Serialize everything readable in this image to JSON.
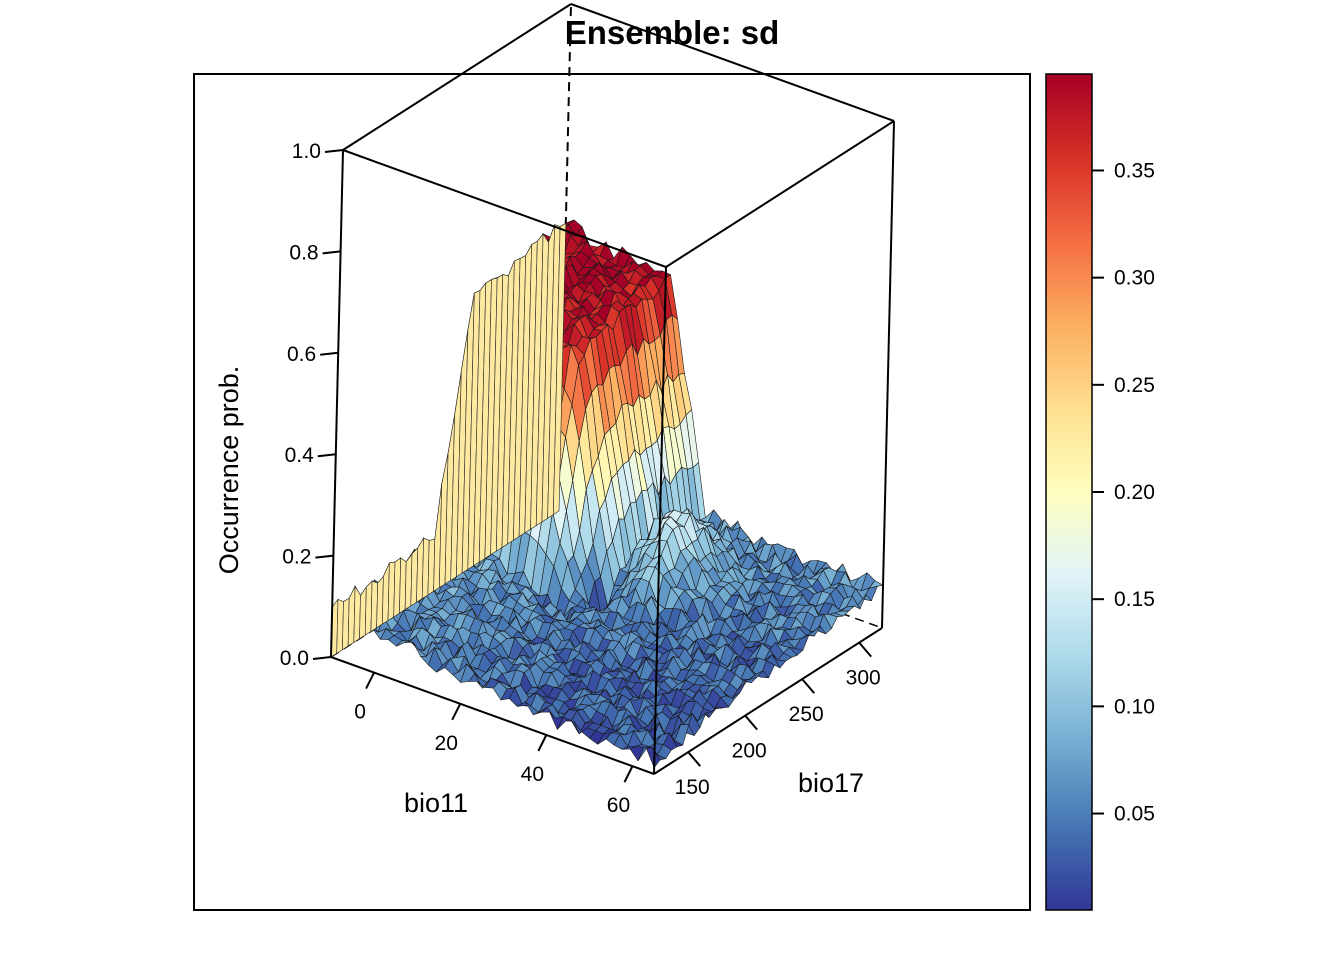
{
  "chart_data": {
    "type": "surface-3d",
    "title": "Ensemble: sd",
    "zlabel": "Occurrence prob.",
    "xlabel": "bio11",
    "ylabel": "bio17",
    "zlim": [
      0.0,
      1.0
    ],
    "z_ticks": [
      "0.0",
      "0.2",
      "0.4",
      "0.6",
      "0.8",
      "1.0"
    ],
    "x_ticks": [
      "0",
      "20",
      "40",
      "60"
    ],
    "y_ticks": [
      "150",
      "200",
      "250",
      "300"
    ],
    "grid": false,
    "colorbar": {
      "range": [
        0.005,
        0.395
      ],
      "ticks": [
        "0.05",
        "0.10",
        "0.15",
        "0.20",
        "0.25",
        "0.30",
        "0.35"
      ],
      "palette": [
        "#313695",
        "#4575b4",
        "#74add1",
        "#abd9e9",
        "#e0f3f8",
        "#ffffbf",
        "#fee090",
        "#fdae61",
        "#f46d43",
        "#d73027",
        "#a50026"
      ]
    },
    "surface_description": "Estimated occurrence probability surface over bio11 (about -10 to 65) and bio17 (about 120 to 320); values about 0.35-0.45 at low bio11 / high bio17, falling to near 0.0 at high bio11 / low bio17; facet color encodes ensemble sd."
  }
}
